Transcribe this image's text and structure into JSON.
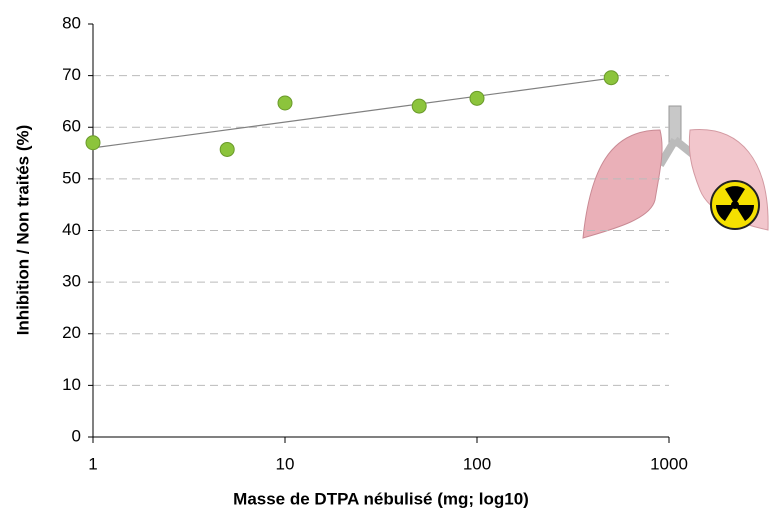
{
  "chart_data": {
    "type": "scatter",
    "x_label": "Masse de DTPA nébulisé (mg; log10)",
    "y_label": "Inhibition / Non traités (%)",
    "x": [
      1,
      5,
      10,
      50,
      100,
      500
    ],
    "values": [
      57,
      55.7,
      64.7,
      64.1,
      65.6,
      69.6
    ],
    "color": "#8cc43c",
    "trendline": {
      "x": [
        1,
        500
      ],
      "values": [
        56,
        69.5
      ],
      "color": "#808080"
    },
    "x_log": true,
    "xlim": [
      1,
      1000
    ],
    "xticks": [
      1,
      10,
      100,
      1000
    ],
    "ylim": [
      0,
      80
    ],
    "yticks": [
      0,
      10,
      20,
      30,
      40,
      50,
      60,
      70,
      80
    ],
    "grid": true
  }
}
